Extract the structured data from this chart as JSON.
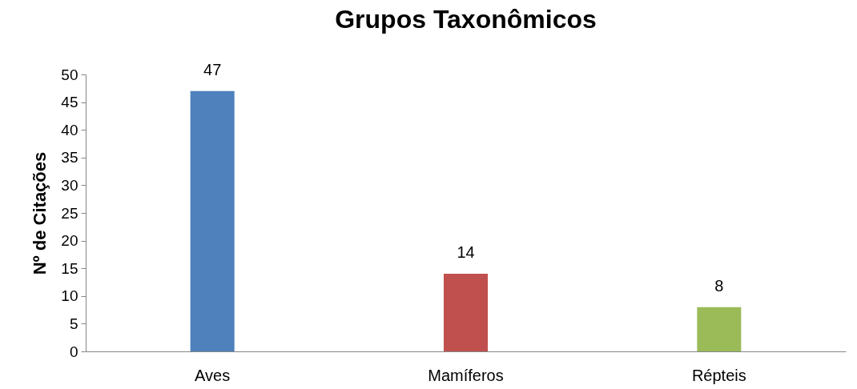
{
  "chart_data": {
    "type": "bar",
    "title": "Grupos Taxonômicos",
    "ylabel": "Nº de Citações",
    "categories": [
      "Aves",
      "Mamíferos",
      "Répteis"
    ],
    "values": [
      47,
      14,
      8
    ],
    "colors": [
      "#4f81bd",
      "#c0504d",
      "#9bbb59"
    ],
    "ylim": [
      0,
      50
    ],
    "yticks": [
      0,
      5,
      10,
      15,
      20,
      25,
      30,
      35,
      40,
      45,
      50
    ],
    "grid": false,
    "legend": false,
    "data_labels": true
  }
}
